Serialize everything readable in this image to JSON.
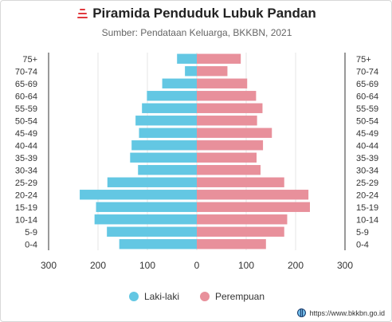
{
  "header": {
    "title": "Piramida Penduduk Lubuk Pandan",
    "subtitle": "Sumber: Pendataan Keluarga, BKKBN, 2021"
  },
  "legend": {
    "male_label": "Laki-laki",
    "female_label": "Perempuan"
  },
  "footer": {
    "source_text": "https://www.bkkbn.go.id",
    "icon": "globe-icon"
  },
  "colors": {
    "male": "#63c7e3",
    "female": "#e8909b",
    "axis": "#333333",
    "grid": "#e6e6e6"
  },
  "chart_data": {
    "type": "bar",
    "orientation": "horizontal",
    "layout": "population-pyramid",
    "categories": [
      "0-4",
      "5-9",
      "10-14",
      "15-19",
      "20-24",
      "25-29",
      "30-34",
      "35-39",
      "40-44",
      "45-49",
      "50-54",
      "55-59",
      "60-64",
      "65-69",
      "70-74",
      "75+"
    ],
    "series": [
      {
        "name": "Laki-laki",
        "values": [
          157,
          182,
          207,
          204,
          237,
          181,
          119,
          135,
          132,
          117,
          124,
          111,
          101,
          70,
          24,
          40
        ]
      },
      {
        "name": "Perempuan",
        "values": [
          140,
          177,
          183,
          229,
          226,
          177,
          129,
          121,
          134,
          152,
          122,
          133,
          120,
          102,
          62,
          89
        ]
      }
    ],
    "xlim": [
      -300,
      300
    ],
    "xticks": [
      -300,
      -200,
      -100,
      0,
      100,
      200,
      300
    ],
    "xtick_labels": [
      "300",
      "200",
      "100",
      "0",
      "100",
      "200",
      "300"
    ],
    "grid": true,
    "legend_position": "bottom"
  }
}
